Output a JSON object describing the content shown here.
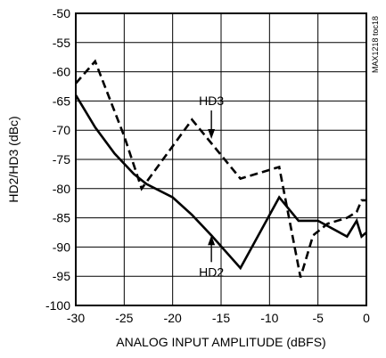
{
  "chart_data": {
    "type": "line",
    "xlabel": "ANALOG INPUT AMPLITUDE (dBFS)",
    "ylabel": "HD2/HD3 (dBc)",
    "xlim": [
      -30,
      0
    ],
    "ylim": [
      -100,
      -50
    ],
    "xticks": [
      -30,
      -25,
      -20,
      -15,
      -10,
      -5,
      0
    ],
    "yticks": [
      -50,
      -55,
      -60,
      -65,
      -70,
      -75,
      -80,
      -85,
      -90,
      -95,
      -100
    ],
    "grid": true,
    "side_label": "MAX1218 toc18",
    "annotations": [
      {
        "text": "HD3",
        "series": "HD3",
        "anchor_x": -16,
        "anchor_y": -71.5
      },
      {
        "text": "HD2",
        "series": "HD2",
        "anchor_x": -16,
        "anchor_y": -88
      }
    ],
    "series": [
      {
        "name": "HD2",
        "style": "solid",
        "points": [
          [
            -30,
            -64
          ],
          [
            -28,
            -69.5
          ],
          [
            -26,
            -74
          ],
          [
            -24,
            -77.5
          ],
          [
            -22.7,
            -79.2
          ],
          [
            -20,
            -81.5
          ],
          [
            -18,
            -84.5
          ],
          [
            -16,
            -88
          ],
          [
            -13,
            -93.6
          ],
          [
            -9,
            -81.5
          ],
          [
            -7,
            -85.5
          ],
          [
            -5,
            -85.5
          ],
          [
            -2,
            -88.2
          ],
          [
            -1,
            -85.5
          ],
          [
            -0.5,
            -88.2
          ],
          [
            0,
            -87.5
          ]
        ]
      },
      {
        "name": "HD3",
        "style": "dashed",
        "points": [
          [
            -30,
            -62
          ],
          [
            -28,
            -58.2
          ],
          [
            -25,
            -71
          ],
          [
            -23.2,
            -80
          ],
          [
            -18,
            -68.2
          ],
          [
            -13,
            -78.3
          ],
          [
            -9,
            -76.3
          ],
          [
            -6.8,
            -95.2
          ],
          [
            -5.5,
            -88
          ],
          [
            -4,
            -86
          ],
          [
            -2,
            -85
          ],
          [
            -1,
            -84
          ],
          [
            -0.5,
            -82
          ],
          [
            0,
            -82
          ]
        ]
      }
    ]
  }
}
